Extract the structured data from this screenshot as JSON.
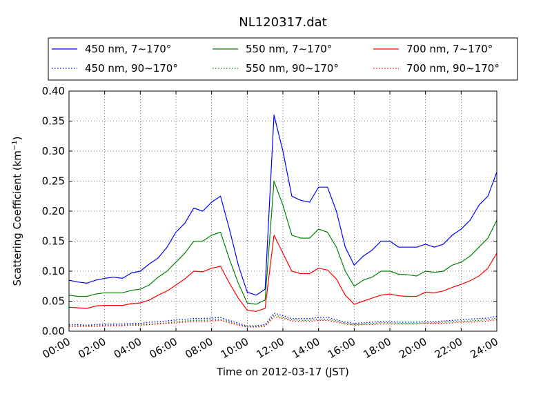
{
  "chart_data": {
    "type": "line",
    "title": "NL120317.dat",
    "xlabel": "Time on 2012-03-17 (JST)",
    "ylabel_main": "Scattering Coefficient (km",
    "ylabel_sup": "−1",
    "ylabel_end": ")",
    "xlim": [
      0,
      24
    ],
    "ylim": [
      0,
      0.4
    ],
    "grid": true,
    "legend_position": "top",
    "x_tick_labels": [
      "00:00",
      "02:00",
      "04:00",
      "06:00",
      "08:00",
      "10:00",
      "12:00",
      "14:00",
      "16:00",
      "18:00",
      "20:00",
      "22:00",
      "24:00"
    ],
    "y_tick_labels": [
      "0.00",
      "0.05",
      "0.10",
      "0.15",
      "0.20",
      "0.25",
      "0.30",
      "0.35",
      "0.40"
    ],
    "x": [
      0,
      0.5,
      1,
      1.5,
      2,
      2.5,
      3,
      3.5,
      4,
      4.5,
      5,
      5.5,
      6,
      6.5,
      7,
      7.5,
      8,
      8.5,
      9,
      9.5,
      10,
      10.5,
      11,
      11.5,
      12,
      12.5,
      13,
      13.5,
      14,
      14.5,
      15,
      15.5,
      16,
      16.5,
      17,
      17.5,
      18,
      18.5,
      19,
      19.5,
      20,
      20.5,
      21,
      21.5,
      22,
      22.5,
      23,
      23.5,
      24
    ],
    "series": [
      {
        "name": "450 nm, 7∼170°",
        "color": "#0000ff",
        "style": "solid",
        "values": [
          0.085,
          0.082,
          0.08,
          0.085,
          0.088,
          0.09,
          0.088,
          0.097,
          0.1,
          0.112,
          0.122,
          0.14,
          0.165,
          0.18,
          0.205,
          0.2,
          0.215,
          0.225,
          0.17,
          0.11,
          0.065,
          0.06,
          0.07,
          0.36,
          0.3,
          0.225,
          0.218,
          0.215,
          0.24,
          0.24,
          0.2,
          0.14,
          0.11,
          0.125,
          0.135,
          0.15,
          0.15,
          0.14,
          0.14,
          0.14,
          0.145,
          0.14,
          0.145,
          0.16,
          0.17,
          0.185,
          0.21,
          0.225,
          0.265
        ]
      },
      {
        "name": "550 nm, 7∼170°",
        "color": "#008000",
        "style": "solid",
        "values": [
          0.06,
          0.058,
          0.058,
          0.062,
          0.064,
          0.064,
          0.064,
          0.068,
          0.07,
          0.077,
          0.09,
          0.1,
          0.115,
          0.13,
          0.15,
          0.15,
          0.16,
          0.165,
          0.12,
          0.08,
          0.047,
          0.045,
          0.052,
          0.25,
          0.21,
          0.16,
          0.155,
          0.155,
          0.17,
          0.165,
          0.14,
          0.1,
          0.075,
          0.085,
          0.09,
          0.1,
          0.1,
          0.095,
          0.094,
          0.092,
          0.1,
          0.098,
          0.1,
          0.11,
          0.115,
          0.125,
          0.14,
          0.155,
          0.185
        ]
      },
      {
        "name": "700 nm, 7∼170°",
        "color": "#ff0000",
        "style": "solid",
        "values": [
          0.04,
          0.039,
          0.038,
          0.042,
          0.043,
          0.043,
          0.043,
          0.046,
          0.047,
          0.052,
          0.06,
          0.067,
          0.077,
          0.087,
          0.1,
          0.099,
          0.105,
          0.108,
          0.08,
          0.055,
          0.035,
          0.033,
          0.038,
          0.16,
          0.13,
          0.1,
          0.096,
          0.096,
          0.105,
          0.102,
          0.087,
          0.06,
          0.045,
          0.05,
          0.055,
          0.06,
          0.062,
          0.059,
          0.058,
          0.058,
          0.065,
          0.064,
          0.067,
          0.073,
          0.078,
          0.084,
          0.092,
          0.105,
          0.13
        ]
      },
      {
        "name": "450 nm, 90∼170°",
        "color": "#0000ff",
        "style": "dotted",
        "values": [
          0.011,
          0.011,
          0.01,
          0.011,
          0.012,
          0.012,
          0.012,
          0.013,
          0.013,
          0.015,
          0.016,
          0.017,
          0.019,
          0.02,
          0.021,
          0.021,
          0.022,
          0.023,
          0.018,
          0.013,
          0.009,
          0.009,
          0.011,
          0.03,
          0.026,
          0.021,
          0.021,
          0.021,
          0.023,
          0.023,
          0.019,
          0.015,
          0.013,
          0.014,
          0.015,
          0.016,
          0.016,
          0.015,
          0.015,
          0.015,
          0.016,
          0.016,
          0.017,
          0.018,
          0.019,
          0.02,
          0.021,
          0.022,
          0.025
        ]
      },
      {
        "name": "550 nm, 90∼170°",
        "color": "#008000",
        "style": "dotted",
        "values": [
          0.009,
          0.009,
          0.009,
          0.009,
          0.01,
          0.01,
          0.01,
          0.011,
          0.011,
          0.012,
          0.013,
          0.014,
          0.016,
          0.017,
          0.018,
          0.018,
          0.019,
          0.02,
          0.016,
          0.011,
          0.008,
          0.008,
          0.009,
          0.027,
          0.023,
          0.019,
          0.018,
          0.018,
          0.02,
          0.02,
          0.017,
          0.013,
          0.011,
          0.012,
          0.013,
          0.014,
          0.014,
          0.013,
          0.013,
          0.013,
          0.014,
          0.014,
          0.015,
          0.016,
          0.016,
          0.017,
          0.018,
          0.019,
          0.022
        ]
      },
      {
        "name": "700 nm, 90∼170°",
        "color": "#ff0000",
        "style": "dotted",
        "values": [
          0.008,
          0.008,
          0.008,
          0.008,
          0.009,
          0.009,
          0.009,
          0.01,
          0.01,
          0.011,
          0.012,
          0.013,
          0.014,
          0.015,
          0.016,
          0.016,
          0.017,
          0.018,
          0.014,
          0.01,
          0.007,
          0.007,
          0.008,
          0.024,
          0.021,
          0.017,
          0.016,
          0.016,
          0.018,
          0.018,
          0.015,
          0.012,
          0.01,
          0.011,
          0.011,
          0.012,
          0.012,
          0.012,
          0.012,
          0.012,
          0.013,
          0.013,
          0.013,
          0.014,
          0.015,
          0.015,
          0.016,
          0.017,
          0.019
        ]
      }
    ]
  }
}
